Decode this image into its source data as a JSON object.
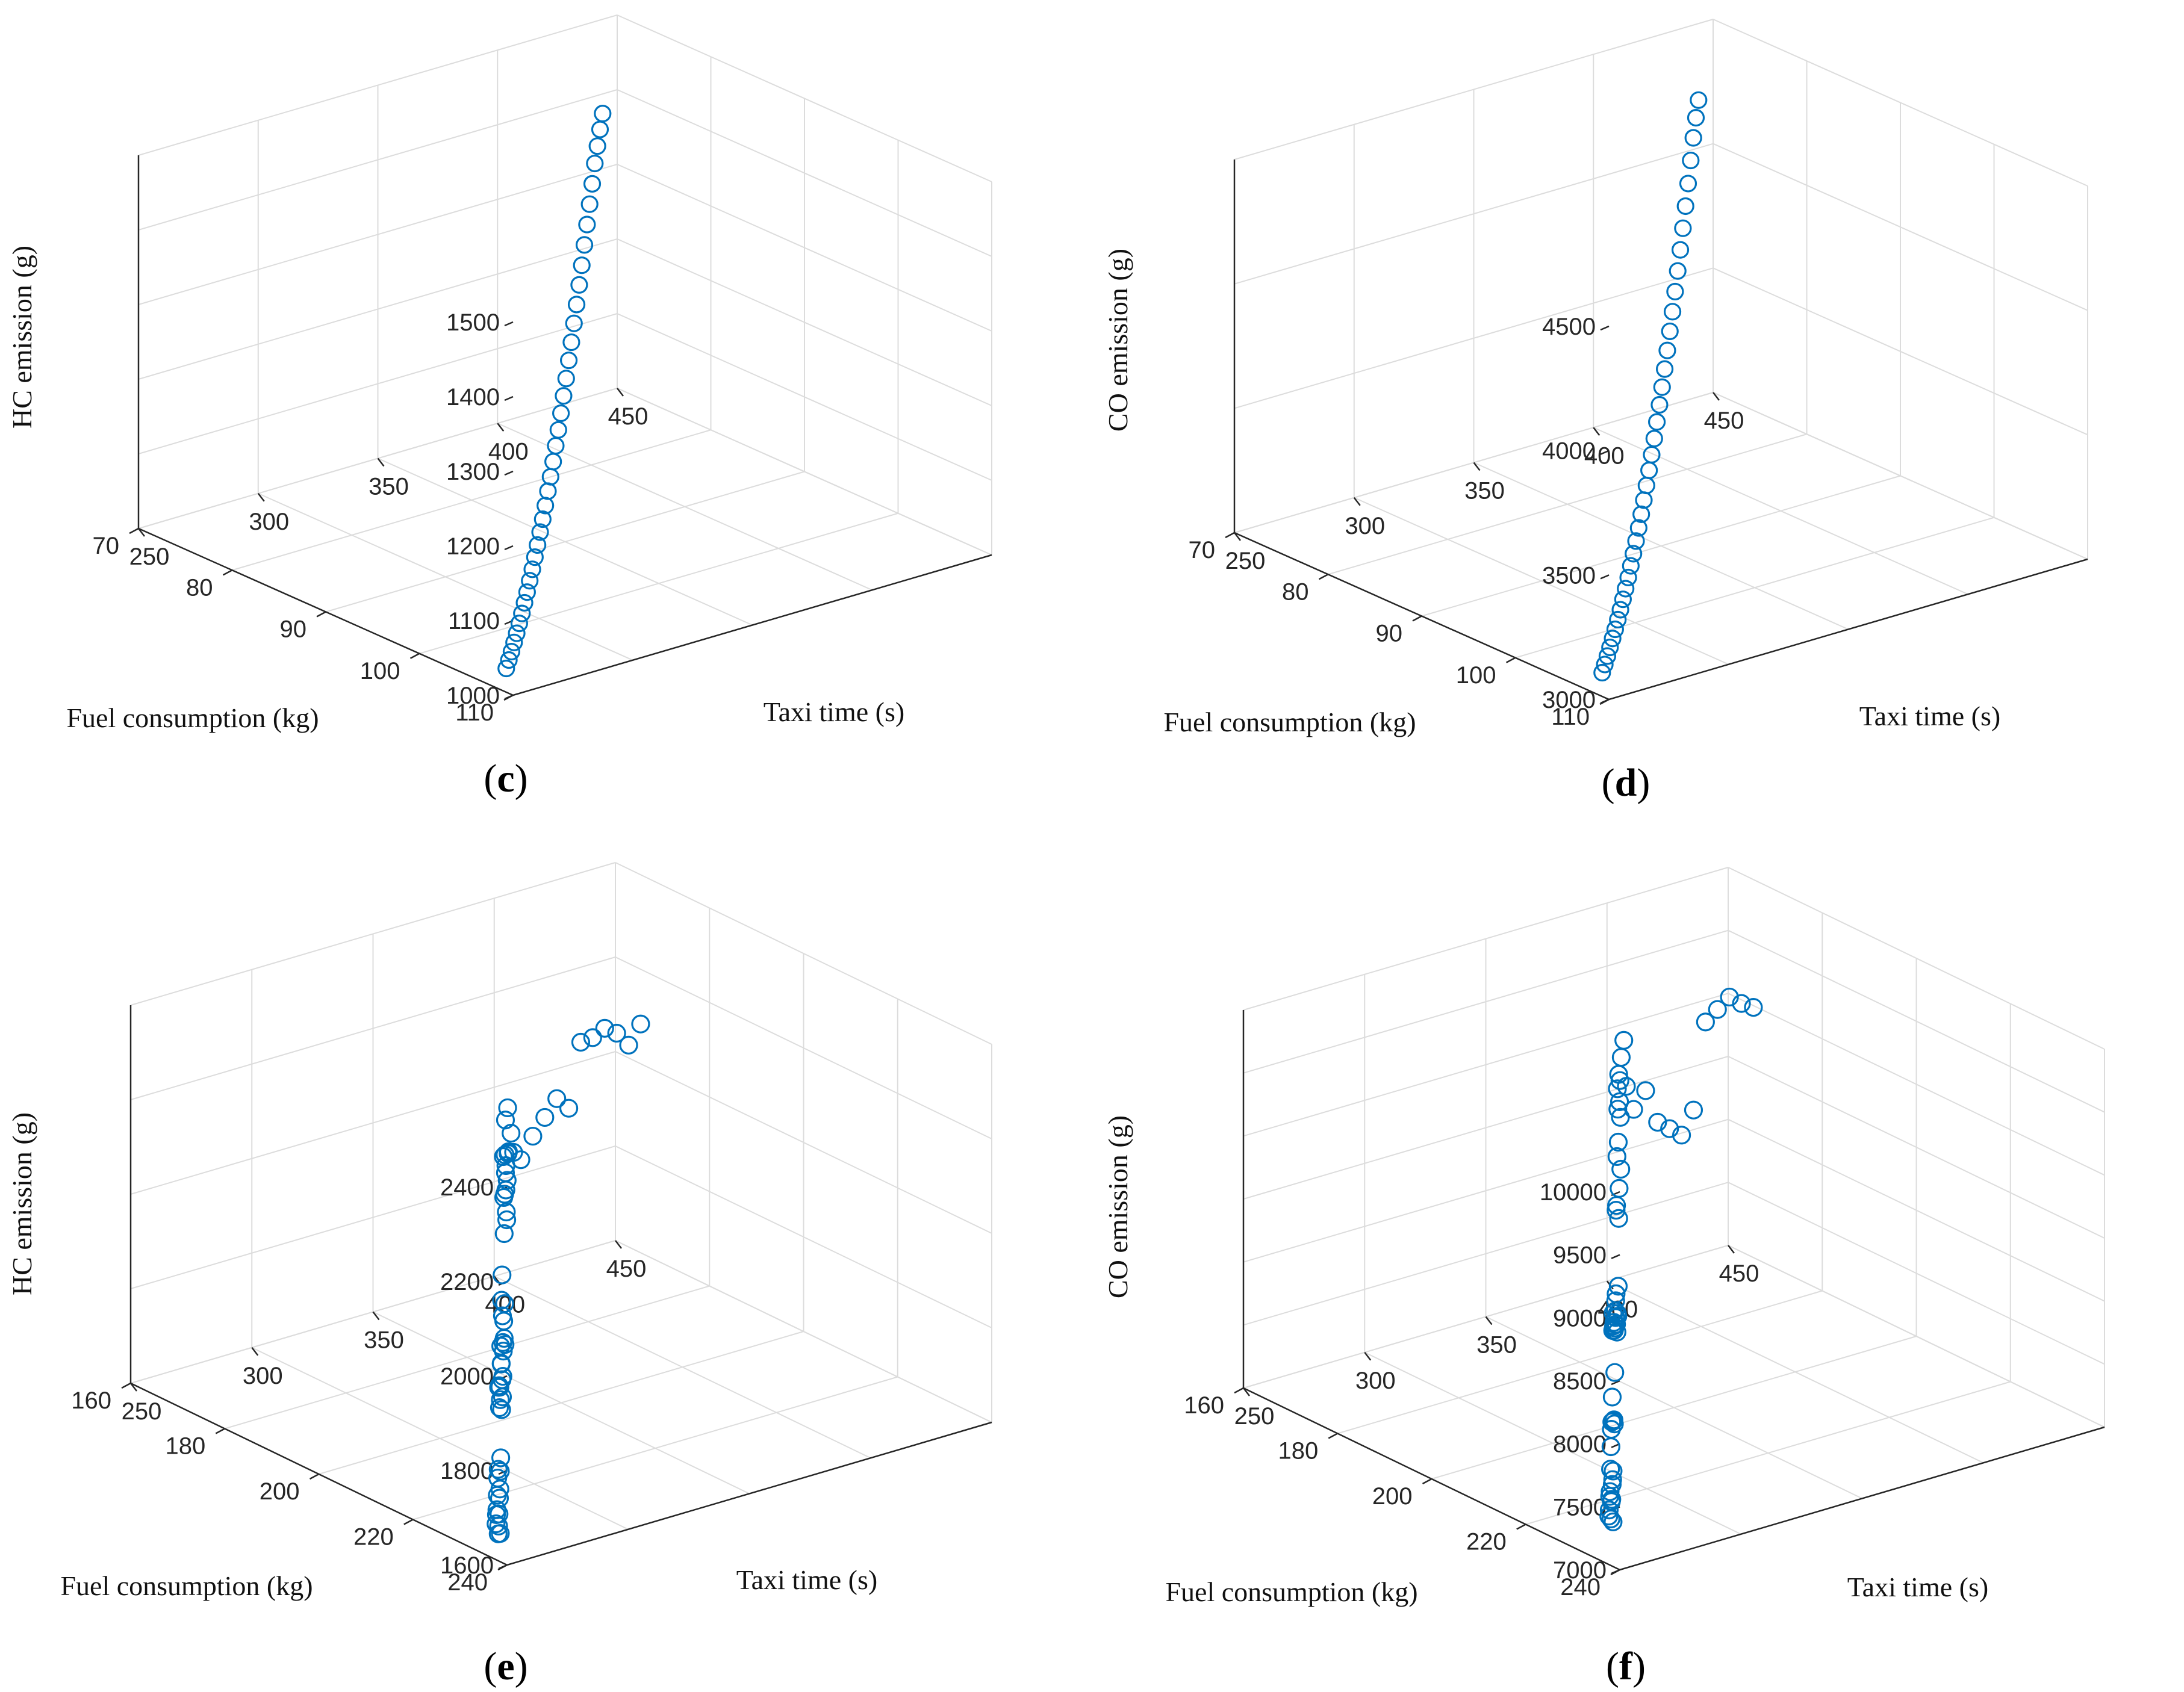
{
  "chart_data": [
    {
      "type": "scatter",
      "panel": "c",
      "caption": "(c)",
      "title": "",
      "xlabel": "Taxi time (s)",
      "ylabel": "Fuel consumption (kg)",
      "zlabel": "HC emission (g)",
      "xlim": [
        250,
        450
      ],
      "ylim": [
        70,
        110
      ],
      "zlim": [
        1000,
        1500
      ],
      "xticks": [
        250,
        300,
        350,
        400,
        450
      ],
      "yticks": [
        70,
        80,
        90,
        100,
        110
      ],
      "zticks": [
        1000,
        1100,
        1200,
        1300,
        1400,
        1500
      ],
      "marker_color": "#0072BD",
      "x": [
        255,
        260,
        265,
        270,
        275,
        280,
        285,
        290,
        295,
        300,
        305,
        310,
        315,
        320,
        325,
        330,
        335,
        340,
        345,
        350,
        355,
        360,
        365,
        370,
        375,
        380,
        385,
        390,
        395,
        400,
        405,
        410,
        415,
        420,
        425,
        430,
        435,
        440
      ],
      "y": [
        108,
        107,
        106,
        105,
        104,
        103,
        102,
        101,
        100,
        99,
        98,
        97,
        96,
        95,
        94,
        93,
        92,
        91,
        90,
        89,
        88,
        87,
        86,
        85,
        84,
        83,
        82,
        81,
        80,
        79,
        78,
        77,
        76,
        75,
        74,
        73,
        72,
        71
      ],
      "z": [
        1020,
        1021,
        1022,
        1024,
        1026,
        1029,
        1032,
        1036,
        1040,
        1045,
        1050,
        1056,
        1062,
        1069,
        1076,
        1084,
        1093,
        1102,
        1112,
        1123,
        1134,
        1146,
        1159,
        1172,
        1186,
        1200,
        1215,
        1230,
        1246,
        1262,
        1279,
        1296,
        1313,
        1330,
        1347,
        1360,
        1372,
        1383
      ]
    },
    {
      "type": "scatter",
      "panel": "d",
      "caption": "(d)",
      "title": "",
      "xlabel": "Taxi time (s)",
      "ylabel": "Fuel consumption (kg)",
      "zlabel": "CO emission (g)",
      "xlim": [
        250,
        450
      ],
      "ylim": [
        70,
        110
      ],
      "zlim": [
        3000,
        4500
      ],
      "xticks": [
        250,
        300,
        350,
        400,
        450
      ],
      "yticks": [
        70,
        80,
        90,
        100,
        110
      ],
      "zticks": [
        3000,
        3500,
        4000,
        4500
      ],
      "marker_color": "#0072BD",
      "x": [
        255,
        260,
        265,
        270,
        275,
        280,
        285,
        290,
        295,
        300,
        305,
        310,
        315,
        320,
        325,
        330,
        335,
        340,
        345,
        350,
        355,
        360,
        365,
        370,
        375,
        380,
        385,
        390,
        395,
        400,
        405,
        410,
        415,
        420,
        425,
        430,
        435,
        440
      ],
      "y": [
        108,
        107,
        106,
        105,
        104,
        103,
        102,
        101,
        100,
        99,
        98,
        97,
        96,
        95,
        94,
        93,
        92,
        91,
        90,
        89,
        88,
        87,
        86,
        85,
        84,
        83,
        82,
        81,
        80,
        79,
        78,
        77,
        76,
        75,
        74,
        73,
        72,
        71
      ],
      "z": [
        3060,
        3062,
        3065,
        3069,
        3074,
        3080,
        3088,
        3097,
        3108,
        3120,
        3134,
        3150,
        3168,
        3188,
        3210,
        3234,
        3260,
        3288,
        3318,
        3350,
        3384,
        3420,
        3458,
        3498,
        3540,
        3584,
        3630,
        3678,
        3728,
        3780,
        3834,
        3890,
        3948,
        4008,
        4070,
        4130,
        4180,
        4220
      ]
    },
    {
      "type": "scatter",
      "panel": "e",
      "caption": "(e)",
      "title": "",
      "xlabel": "Taxi time (s)",
      "ylabel": "Fuel consumption (kg)",
      "zlabel": "HC emission (g)",
      "xlim": [
        250,
        450
      ],
      "ylim": [
        160,
        240
      ],
      "zlim": [
        1600,
        2400
      ],
      "xticks": [
        250,
        300,
        350,
        400,
        450
      ],
      "yticks": [
        160,
        180,
        200,
        220,
        240
      ],
      "zticks": [
        1600,
        1800,
        2000,
        2200,
        2400
      ],
      "marker_color": "#0072BD",
      "x": [
        255,
        258,
        261,
        264,
        267,
        270,
        273,
        276,
        279,
        282,
        285,
        288,
        291,
        294,
        297,
        300,
        303,
        306,
        309,
        312,
        315,
        318,
        321,
        324,
        327,
        330,
        333,
        336,
        339,
        342,
        345,
        348,
        351,
        354,
        357,
        360,
        363,
        366,
        369,
        372,
        375,
        378,
        381,
        384,
        387,
        390,
        393,
        396,
        399,
        402,
        405,
        408,
        411,
        414,
        417,
        420,
        423,
        426,
        429,
        432,
        435,
        438,
        441
      ],
      "y": [
        236,
        234,
        232,
        231,
        229,
        228,
        226,
        225,
        223,
        222,
        220,
        219,
        217,
        216,
        214,
        213,
        211,
        210,
        208,
        207,
        205,
        204,
        202,
        201,
        199,
        198,
        196,
        195,
        193,
        192,
        190,
        189,
        187,
        186,
        184,
        183,
        181,
        180,
        178,
        177,
        175,
        174,
        172,
        171,
        169,
        168,
        166,
        165,
        163,
        162,
        161,
        160,
        160,
        161,
        162,
        163,
        164,
        165,
        166,
        167,
        168,
        169,
        170
      ],
      "z": [
        1640,
        1625,
        1632,
        1618,
        1628,
        1620,
        1615,
        1630,
        1622,
        1626,
        1635,
        1640,
        1630,
        1645,
        1780,
        1820,
        1760,
        1700,
        1690,
        1740,
        1710,
        1680,
        1660,
        1700,
        1750,
        1730,
        1690,
        1770,
        1800,
        1710,
        1830,
        1760,
        1720,
        1650,
        1640,
        1990,
        2010,
        1930,
        1900,
        1860,
        1800,
        1820,
        1860,
        1880,
        1920,
        2010,
        1970,
        1890,
        1850,
        1870,
        1900,
        1850,
        1830,
        1880,
        1920,
        1960,
        1940,
        2080,
        2090,
        2110,
        2100,
        2075,
        2120
      ]
    },
    {
      "type": "scatter",
      "panel": "f",
      "caption": "(f)",
      "title": "",
      "xlabel": "Taxi time (s)",
      "ylabel": "Fuel consumption (kg)",
      "zlabel": "CO emission (g)",
      "xlim": [
        250,
        450
      ],
      "ylim": [
        160,
        240
      ],
      "zlim": [
        7000,
        10000
      ],
      "xticks": [
        250,
        300,
        350,
        400,
        450
      ],
      "yticks": [
        160,
        180,
        200,
        220,
        240
      ],
      "zticks": [
        7000,
        7500,
        8000,
        8500,
        9000,
        9500,
        10000
      ],
      "marker_color": "#0072BD",
      "x": [
        255,
        258,
        261,
        264,
        267,
        270,
        273,
        276,
        279,
        282,
        285,
        288,
        291,
        294,
        297,
        300,
        303,
        306,
        309,
        312,
        315,
        318,
        321,
        324,
        327,
        330,
        333,
        336,
        339,
        342,
        345,
        348,
        351,
        354,
        357,
        360,
        363,
        366,
        369,
        372,
        375,
        378,
        381,
        384,
        387,
        390,
        393,
        396,
        399,
        402,
        405,
        408,
        411,
        414,
        417,
        420,
        423,
        426,
        429,
        432,
        435,
        438,
        441
      ],
      "y": [
        236,
        234,
        232,
        231,
        229,
        228,
        226,
        225,
        223,
        222,
        220,
        219,
        217,
        216,
        214,
        213,
        211,
        210,
        208,
        207,
        205,
        204,
        202,
        201,
        199,
        198,
        196,
        195,
        193,
        192,
        190,
        189,
        187,
        186,
        184,
        183,
        181,
        180,
        178,
        177,
        175,
        174,
        172,
        171,
        169,
        168,
        166,
        165,
        163,
        162,
        161,
        160,
        160,
        161,
        162,
        163,
        164,
        165,
        166,
        167,
        168,
        169,
        170
      ],
      "z": [
        7280,
        7250,
        7220,
        7300,
        7180,
        7230,
        7200,
        7260,
        7150,
        7210,
        7240,
        7190,
        7330,
        7500,
        7380,
        7420,
        7350,
        7300,
        7460,
        7620,
        7900,
        8020,
        7950,
        7880,
        7760,
        7980,
        7700,
        7650,
        7550,
        7500,
        7480,
        7560,
        7420,
        7450,
        7520,
        7600,
        8150,
        8050,
        8100,
        8200,
        8400,
        8800,
        8850,
        8880,
        8600,
        8500,
        8250,
        8000,
        8700,
        8800,
        8900,
        8500,
        8300,
        8450,
        8200,
        8150,
        8100,
        8300,
        9000,
        9100,
        9200,
        9150,
        9120
      ]
    }
  ]
}
